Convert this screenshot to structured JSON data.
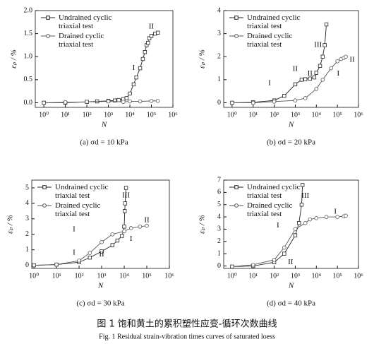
{
  "chart_data": [
    {
      "type": "line",
      "caption": "(a) σd = 10 kPa",
      "x_label": "N",
      "y_label": "εₚ / %",
      "log_x": true,
      "xlim": [
        0.4,
        1000000
      ],
      "xticks": [
        {
          "value": 1,
          "label": "10⁰"
        },
        {
          "value": 10,
          "label": "10¹"
        },
        {
          "value": 100,
          "label": "10²"
        },
        {
          "value": 1000,
          "label": "10³"
        },
        {
          "value": 10000,
          "label": "10⁴"
        },
        {
          "value": 100000,
          "label": "10⁵"
        },
        {
          "value": 1000000,
          "label": "10⁶"
        }
      ],
      "ylim": [
        -0.1,
        2.0
      ],
      "yticks": [
        {
          "value": 0,
          "label": "0.0"
        },
        0.5,
        {
          "value": 1,
          "label": "1.0"
        },
        1.5,
        {
          "value": 2,
          "label": "2.0"
        }
      ],
      "legend": "upper left",
      "annotations": [
        "I",
        "II"
      ],
      "series": [
        {
          "name": "Undrained cyclic triaxial test",
          "color": "#222222",
          "marker": "square",
          "x": [
            1,
            10,
            100,
            300,
            1000,
            2000,
            3000,
            5000,
            7000,
            10000,
            15000,
            20000,
            30000,
            40000,
            50000,
            60000,
            70000,
            80000,
            100000,
            150000,
            200000
          ],
          "values": [
            0,
            0,
            0.02,
            0.03,
            0.04,
            0.05,
            0.06,
            0.08,
            0.1,
            0.2,
            0.4,
            0.55,
            0.75,
            0.95,
            1.1,
            1.25,
            1.3,
            1.4,
            1.45,
            1.5,
            1.52
          ]
        },
        {
          "name": "Drained cyclic triaxial test",
          "color": "#555555",
          "marker": "circle",
          "x": [
            1,
            10,
            100,
            1000,
            5000,
            10000,
            30000,
            100000,
            200000
          ],
          "values": [
            0,
            0.01,
            0.02,
            0.03,
            0.02,
            0.03,
            0.03,
            0.04,
            0.04
          ]
        }
      ]
    },
    {
      "type": "line",
      "caption": "(b) σd = 20 kPa",
      "x_label": "N",
      "y_label": "εₚ / %",
      "log_x": true,
      "xlim": [
        0.4,
        1000000
      ],
      "xticks": [
        {
          "value": 1,
          "label": "10⁰"
        },
        {
          "value": 10,
          "label": "10¹"
        },
        {
          "value": 100,
          "label": "10²"
        },
        {
          "value": 1000,
          "label": "10³"
        },
        {
          "value": 10000,
          "label": "10⁴"
        },
        {
          "value": 100000,
          "label": "10⁵"
        },
        {
          "value": 1000000,
          "label": "10⁶"
        }
      ],
      "ylim": [
        -0.2,
        4
      ],
      "yticks": [
        0,
        1,
        2,
        3,
        4
      ],
      "legend": "upper left",
      "annotations": [
        "I",
        "II",
        "III",
        "II",
        "I",
        "II"
      ],
      "series": [
        {
          "name": "Undrained cyclic triaxial test",
          "color": "#222222",
          "marker": "square",
          "x": [
            1,
            10,
            100,
            300,
            1000,
            2000,
            3000,
            5000,
            8000,
            10000,
            15000,
            20000,
            25000,
            30000
          ],
          "values": [
            0,
            0.02,
            0.1,
            0.3,
            0.8,
            1.0,
            1.02,
            1.05,
            1.1,
            1.3,
            1.6,
            2.0,
            2.5,
            3.4
          ]
        },
        {
          "name": "Drained cyclic triaxial test",
          "color": "#555555",
          "marker": "circle",
          "x": [
            1,
            10,
            100,
            1000,
            3000,
            10000,
            20000,
            50000,
            100000,
            150000,
            200000,
            250000
          ],
          "values": [
            0,
            0,
            0.05,
            0.1,
            0.2,
            0.6,
            1.0,
            1.5,
            1.8,
            1.9,
            1.95,
            2.0
          ]
        }
      ]
    },
    {
      "type": "line",
      "caption": "(c) σd = 30 kPa",
      "x_label": "N",
      "y_label": "εₚ / %",
      "log_x": true,
      "xlim": [
        0.8,
        1000000
      ],
      "xticks": [
        {
          "value": 1,
          "label": "10⁰"
        },
        {
          "value": 10,
          "label": "10¹"
        },
        {
          "value": 100,
          "label": "10²"
        },
        {
          "value": 1000,
          "label": "10³"
        },
        {
          "value": 10000,
          "label": "10⁴"
        },
        {
          "value": 100000,
          "label": "10⁵"
        },
        {
          "value": 1000000,
          "label": "10⁶"
        }
      ],
      "ylim": [
        -0.2,
        5.5
      ],
      "yticks": [
        0,
        1,
        2,
        3,
        4,
        5
      ],
      "legend": "upper left",
      "annotations": [
        "I",
        "III",
        "I",
        "II",
        "I",
        "II"
      ],
      "series": [
        {
          "name": "Undrained cyclic triaxial test",
          "color": "#222222",
          "marker": "square",
          "x": [
            1,
            10,
            100,
            300,
            1000,
            3000,
            5000,
            8000,
            10000,
            10500,
            11000,
            12000
          ],
          "values": [
            0,
            0.05,
            0.2,
            0.5,
            0.9,
            1.3,
            1.6,
            1.9,
            2.5,
            3.5,
            4.0,
            5.0
          ]
        },
        {
          "name": "Drained cyclic triaxial test",
          "color": "#555555",
          "marker": "circle",
          "x": [
            1,
            10,
            100,
            300,
            1000,
            3000,
            10000,
            20000,
            50000,
            100000
          ],
          "values": [
            0,
            0.05,
            0.3,
            0.8,
            1.5,
            2.0,
            2.2,
            2.4,
            2.5,
            2.55
          ]
        }
      ]
    },
    {
      "type": "line",
      "caption": "(d) σd = 40 kPa",
      "x_label": "N",
      "y_label": "εₚ / %",
      "log_x": true,
      "xlim": [
        0.4,
        1000000
      ],
      "xticks": [
        {
          "value": 1,
          "label": "10⁰"
        },
        {
          "value": 10,
          "label": "10¹"
        },
        {
          "value": 100,
          "label": "10²"
        },
        {
          "value": 1000,
          "label": "10³"
        },
        {
          "value": 10000,
          "label": "10⁴"
        },
        {
          "value": 100000,
          "label": "10⁵"
        },
        {
          "value": 1000000,
          "label": "10⁶"
        }
      ],
      "ylim": [
        -0.2,
        7
      ],
      "yticks": [
        0,
        1,
        2,
        3,
        4,
        5,
        6,
        7
      ],
      "legend": "upper left",
      "annotations": [
        "I",
        "III",
        "II",
        "I"
      ],
      "series": [
        {
          "name": "Undrained cyclic triaxial test",
          "color": "#222222",
          "marker": "square",
          "x": [
            1,
            10,
            100,
            300,
            1000,
            1500,
            2000,
            2200
          ],
          "values": [
            -0.05,
            0,
            0.3,
            1.0,
            2.5,
            3.5,
            5.0,
            6.6
          ]
        },
        {
          "name": "Drained cyclic triaxial test",
          "color": "#555555",
          "marker": "circle",
          "x": [
            1,
            10,
            100,
            300,
            1000,
            3000,
            5000,
            10000,
            30000,
            100000,
            200000,
            250000
          ],
          "values": [
            -0.05,
            0.1,
            0.5,
            1.5,
            3.0,
            3.5,
            3.8,
            3.9,
            4.0,
            4.0,
            4.05,
            4.1
          ]
        }
      ]
    }
  ],
  "caption_zh": "图 1   饱和黄土的累积塑性应变-循环次数曲线",
  "caption_en": "Fig. 1   Residual strain-vibration times curves of saturated loess"
}
